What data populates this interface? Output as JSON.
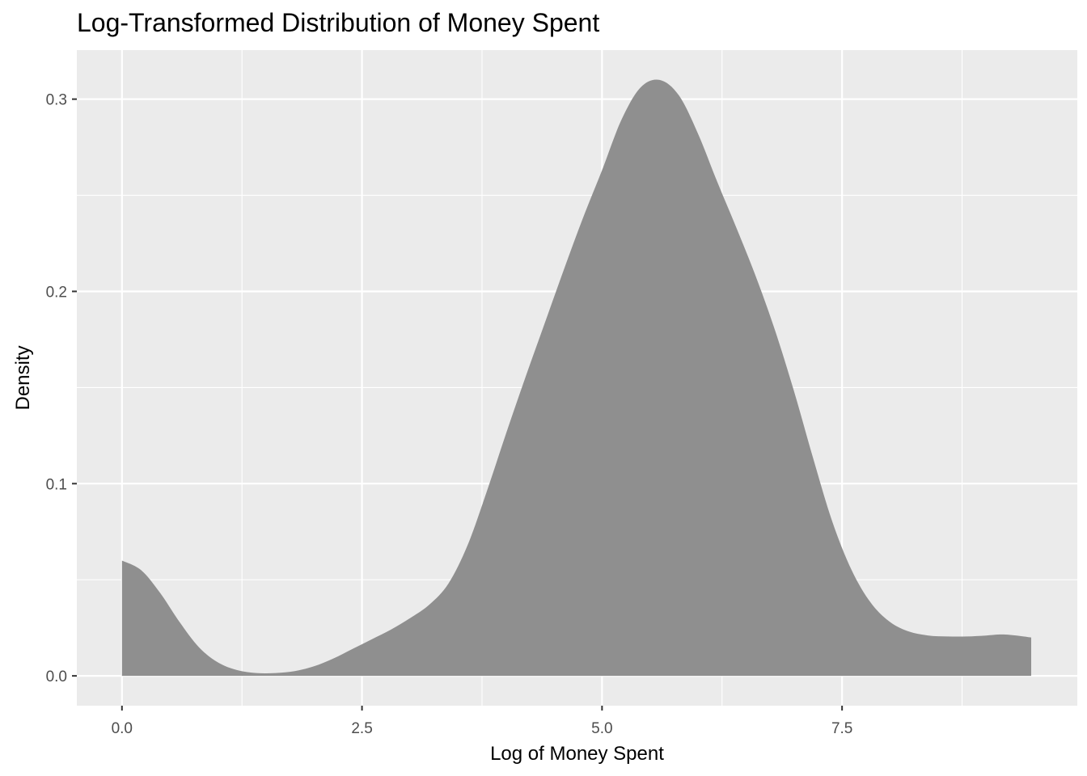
{
  "chart_data": {
    "type": "area",
    "title": "Log-Transformed Distribution of Money Spent",
    "xlabel": "Log of Money Spent",
    "ylabel": "Density",
    "xlim": [
      -0.47,
      9.95
    ],
    "ylim": [
      -0.0155,
      0.3255
    ],
    "x_ticks": [
      0,
      2.5,
      5,
      7.5
    ],
    "x_tick_labels": [
      "0.0",
      "2.5",
      "5.0",
      "7.5"
    ],
    "y_ticks": [
      0,
      0.1,
      0.2,
      0.3
    ],
    "y_tick_labels": [
      "0.0",
      "0.1",
      "0.2",
      "0.3"
    ],
    "grid": true,
    "fill_color": "#8f8f8f",
    "panel_color": "#ebebeb",
    "grid_color": "#ffffff",
    "x": [
      0.0,
      0.2,
      0.4,
      0.6,
      0.8,
      1.0,
      1.2,
      1.4,
      1.6,
      1.8,
      2.0,
      2.2,
      2.4,
      2.6,
      2.8,
      3.0,
      3.2,
      3.4,
      3.6,
      3.8,
      4.0,
      4.2,
      4.4,
      4.6,
      4.8,
      5.0,
      5.2,
      5.4,
      5.6,
      5.8,
      6.0,
      6.2,
      6.4,
      6.6,
      6.8,
      7.0,
      7.2,
      7.4,
      7.6,
      7.8,
      8.0,
      8.2,
      8.4,
      8.6,
      8.8,
      9.0,
      9.2,
      9.47
    ],
    "y": [
      0.06,
      0.055,
      0.043,
      0.028,
      0.015,
      0.007,
      0.003,
      0.0015,
      0.0015,
      0.0025,
      0.005,
      0.009,
      0.014,
      0.019,
      0.024,
      0.03,
      0.037,
      0.048,
      0.068,
      0.096,
      0.126,
      0.155,
      0.183,
      0.211,
      0.238,
      0.263,
      0.289,
      0.306,
      0.31,
      0.302,
      0.282,
      0.257,
      0.233,
      0.208,
      0.18,
      0.148,
      0.113,
      0.08,
      0.055,
      0.038,
      0.028,
      0.023,
      0.021,
      0.0205,
      0.0205,
      0.021,
      0.0215,
      0.02
    ]
  }
}
